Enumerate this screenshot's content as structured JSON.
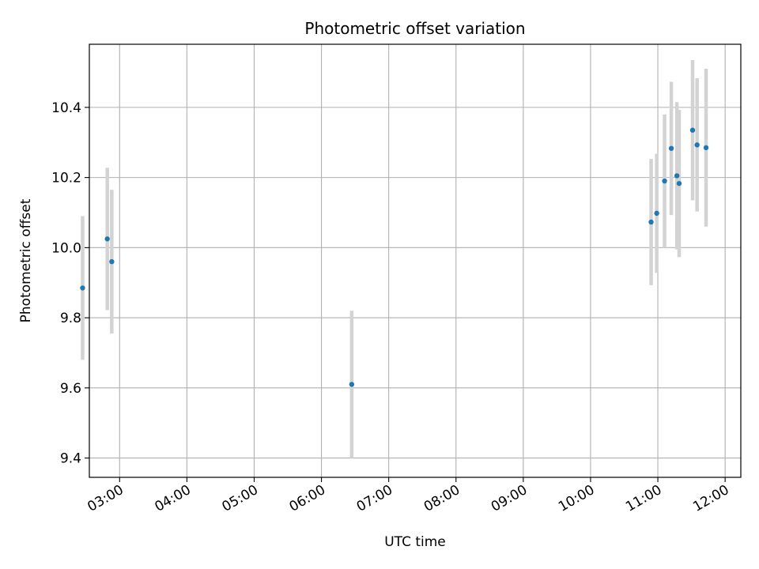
{
  "chart_data": {
    "type": "scatter",
    "title": "Photometric offset variation",
    "xlabel": "UTC time",
    "ylabel": "Photometric offset",
    "xlim": [
      "02:33",
      "12:14"
    ],
    "ylim": [
      9.345,
      10.58
    ],
    "x_ticks": [
      "03:00",
      "04:00",
      "05:00",
      "06:00",
      "07:00",
      "08:00",
      "09:00",
      "10:00",
      "11:00",
      "12:00"
    ],
    "y_ticks": [
      9.4,
      9.6,
      9.8,
      10.0,
      10.2,
      10.4
    ],
    "y_tick_labels": [
      "9.4",
      "9.6",
      "9.8",
      "10.0",
      "10.2",
      "10.4"
    ],
    "grid": true,
    "colors": {
      "marker": "#1f77b4",
      "errorbar": "#d3d3d3",
      "grid": "#b0b0b0",
      "axes": "#000000"
    },
    "series": [
      {
        "points": [
          {
            "x": "02:27",
            "y": 9.885,
            "yerr": 0.205
          },
          {
            "x": "02:49",
            "y": 10.025,
            "yerr": 0.203
          },
          {
            "x": "02:53",
            "y": 9.96,
            "yerr": 0.205
          },
          {
            "x": "06:27",
            "y": 9.61,
            "yerr": 0.21
          },
          {
            "x": "10:54",
            "y": 10.073,
            "yerr": 0.18
          },
          {
            "x": "10:59",
            "y": 10.098,
            "yerr": 0.17
          },
          {
            "x": "11:06",
            "y": 10.19,
            "yerr": 0.19
          },
          {
            "x": "11:12",
            "y": 10.283,
            "yerr": 0.19
          },
          {
            "x": "11:17",
            "y": 10.205,
            "yerr": 0.21
          },
          {
            "x": "11:19",
            "y": 10.183,
            "yerr": 0.21
          },
          {
            "x": "11:31",
            "y": 10.335,
            "yerr": 0.2
          },
          {
            "x": "11:35",
            "y": 10.293,
            "yerr": 0.19
          },
          {
            "x": "11:43",
            "y": 10.285,
            "yerr": 0.225
          }
        ]
      }
    ]
  }
}
